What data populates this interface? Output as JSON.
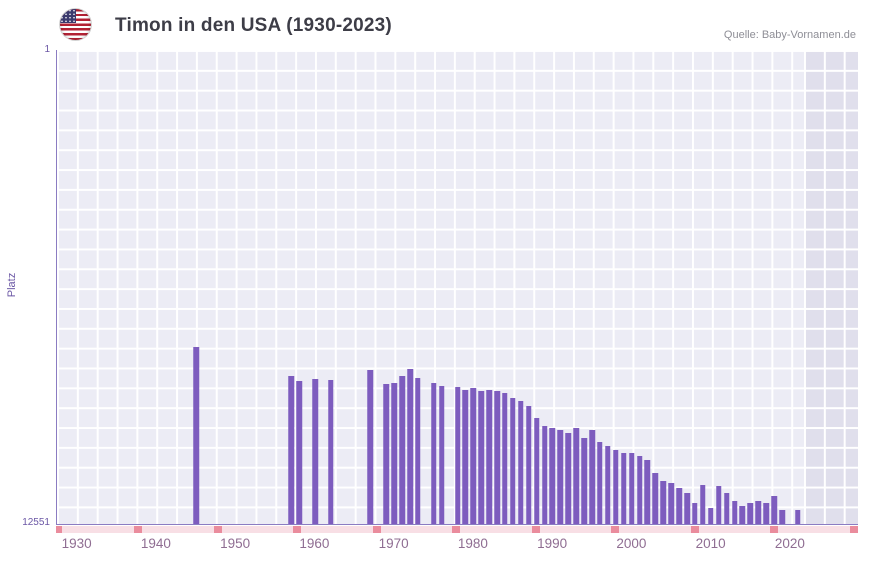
{
  "header": {
    "title": "Timon in den USA (1930-2023)",
    "source": "Quelle: Baby-Vornamen.de",
    "flag_icon": "us-flag-icon"
  },
  "chart_data": {
    "type": "bar",
    "title": "Timon in den USA (1930-2023)",
    "xlabel": "",
    "ylabel": "Platz",
    "y_axis": {
      "top_tick": "1",
      "bottom_tick": "12551",
      "min_rank": 1,
      "max_rank": 12551,
      "scale": "log",
      "inverted": true
    },
    "x_ticks": [
      "1930",
      "1940",
      "1950",
      "1960",
      "1970",
      "1980",
      "1990",
      "2000",
      "2010",
      "2020"
    ],
    "x_range": [
      1927.4,
      2028.6
    ],
    "grid": true,
    "legend": "none",
    "bar_color": "#7d5cbe",
    "plot_bg": "#ececf5",
    "recent_band": {
      "from_year": 2021.8,
      "color": "#e0dfec"
    },
    "strip": {
      "color": "#f8dfe5",
      "mark_color": "#ea8c9d",
      "mark_positions_pct": [
        0.3,
        10.22,
        20.14,
        30.06,
        39.98,
        49.9,
        59.82,
        69.74,
        79.66,
        89.58,
        99.5
      ]
    },
    "series": [
      {
        "name": "Platz",
        "points": [
          [
            1945,
            370
          ],
          [
            1957,
            660
          ],
          [
            1958,
            730
          ],
          [
            1960,
            700
          ],
          [
            1962,
            720
          ],
          [
            1967,
            590
          ],
          [
            1969,
            780
          ],
          [
            1970,
            750
          ],
          [
            1971,
            660
          ],
          [
            1972,
            570
          ],
          [
            1973,
            680
          ],
          [
            1975,
            750
          ],
          [
            1976,
            810
          ],
          [
            1978,
            825
          ],
          [
            1979,
            875
          ],
          [
            1980,
            840
          ],
          [
            1981,
            890
          ],
          [
            1982,
            875
          ],
          [
            1983,
            890
          ],
          [
            1984,
            930
          ],
          [
            1985,
            1030
          ],
          [
            1986,
            1090
          ],
          [
            1987,
            1200
          ],
          [
            1988,
            1530
          ],
          [
            1989,
            1790
          ],
          [
            1990,
            1860
          ],
          [
            1991,
            1940
          ],
          [
            1992,
            2050
          ],
          [
            1993,
            1860
          ],
          [
            1994,
            2270
          ],
          [
            1995,
            1940
          ],
          [
            1996,
            2460
          ],
          [
            1997,
            2660
          ],
          [
            1998,
            2880
          ],
          [
            1999,
            3060
          ],
          [
            2000,
            3060
          ],
          [
            2001,
            3260
          ],
          [
            2002,
            3520
          ],
          [
            2003,
            4560
          ],
          [
            2004,
            5350
          ],
          [
            2005,
            5560
          ],
          [
            2006,
            6140
          ],
          [
            2007,
            6770
          ],
          [
            2008,
            8270
          ],
          [
            2009,
            5790
          ],
          [
            2010,
            9140
          ],
          [
            2011,
            5900
          ],
          [
            2012,
            6770
          ],
          [
            2013,
            7950
          ],
          [
            2014,
            8740
          ],
          [
            2015,
            8270
          ],
          [
            2016,
            7950
          ],
          [
            2017,
            8270
          ],
          [
            2018,
            7180
          ],
          [
            2019,
            9560
          ],
          [
            2021,
            9560
          ]
        ]
      }
    ]
  }
}
